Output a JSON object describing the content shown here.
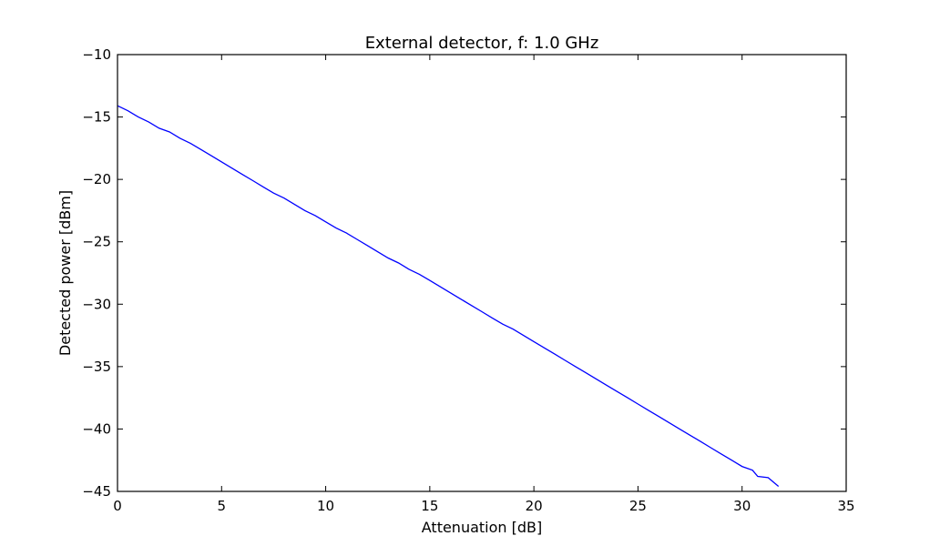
{
  "chart_data": {
    "type": "line",
    "title": "External detector, f: 1.0 GHz",
    "xlabel": "Attenuation [dB]",
    "ylabel": "Detected power [dBm]",
    "xlim": [
      0,
      35
    ],
    "ylim": [
      -45,
      -10
    ],
    "xticks": [
      0,
      5,
      10,
      15,
      20,
      25,
      30,
      35
    ],
    "yticks": [
      -10,
      -15,
      -20,
      -25,
      -30,
      -35,
      -40,
      -45
    ],
    "xtick_labels": [
      "0",
      "5",
      "10",
      "15",
      "20",
      "25",
      "30",
      "35"
    ],
    "ytick_labels": [
      "−10",
      "−15",
      "−20",
      "−25",
      "−30",
      "−35",
      "−40",
      "−45"
    ],
    "grid": false,
    "series_color": "#0000ff",
    "series": [
      {
        "x": [
          0,
          0.5,
          1,
          1.5,
          2,
          2.5,
          3,
          3.5,
          4,
          4.5,
          5,
          5.5,
          6,
          6.5,
          7,
          7.5,
          8,
          8.5,
          9,
          9.5,
          10,
          10.5,
          11,
          11.5,
          12,
          12.5,
          13,
          13.5,
          14,
          14.5,
          15,
          15.5,
          16,
          16.5,
          17,
          17.5,
          18,
          18.5,
          19,
          19.5,
          20,
          20.5,
          21,
          21.5,
          22,
          22.5,
          23,
          23.5,
          24,
          24.5,
          25,
          25.5,
          26,
          26.5,
          27,
          27.5,
          28,
          28.5,
          29,
          29.5,
          30,
          30.5,
          30.75,
          31.25,
          31.75
        ],
        "y": [
          -14.1,
          -14.5,
          -15.0,
          -15.4,
          -15.9,
          -16.2,
          -16.7,
          -17.1,
          -17.6,
          -18.1,
          -18.6,
          -19.1,
          -19.6,
          -20.1,
          -20.6,
          -21.1,
          -21.5,
          -22.0,
          -22.5,
          -22.9,
          -23.4,
          -23.9,
          -24.3,
          -24.8,
          -25.3,
          -25.8,
          -26.3,
          -26.7,
          -27.2,
          -27.6,
          -28.1,
          -28.6,
          -29.1,
          -29.6,
          -30.1,
          -30.6,
          -31.1,
          -31.6,
          -32.0,
          -32.5,
          -33.0,
          -33.5,
          -34.0,
          -34.5,
          -35.0,
          -35.5,
          -36.0,
          -36.5,
          -37.0,
          -37.5,
          -38.0,
          -38.5,
          -39.0,
          -39.5,
          -40.0,
          -40.5,
          -41.0,
          -41.5,
          -42.0,
          -42.5,
          -43.0,
          -43.3,
          -43.8,
          -43.9,
          -44.6
        ]
      }
    ]
  }
}
